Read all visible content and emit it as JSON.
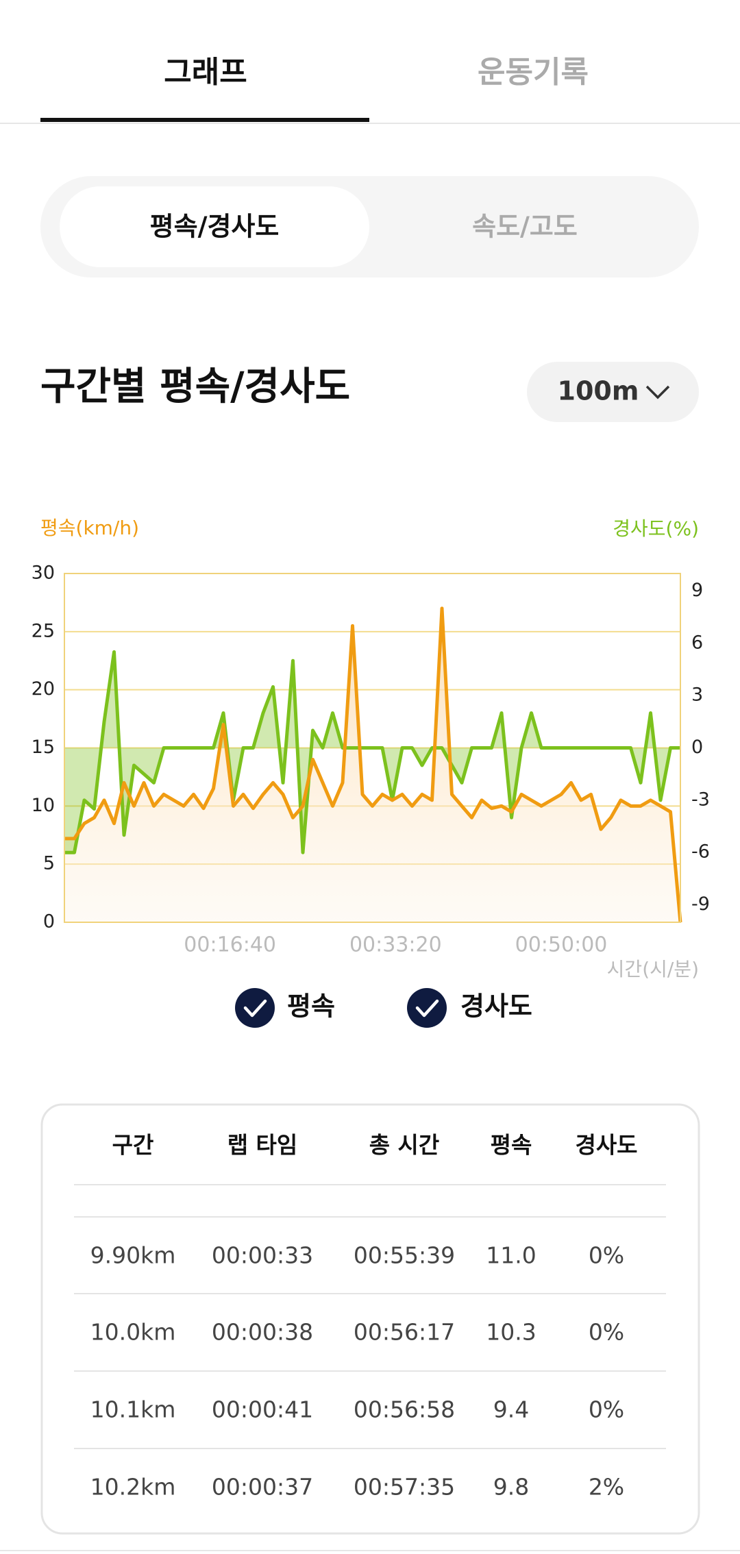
{
  "tabs": [
    "그래프",
    "운동기록"
  ],
  "segments": [
    "평속/경사도",
    "속도/고도"
  ],
  "section_title": "구간별 평속/경사도",
  "dropdown": "100m",
  "chart_data": {
    "type": "line",
    "y_label": "평속(km/h)",
    "y2_label": "경사도(%)",
    "x_label": "시간(시/분)",
    "x": [
      0,
      60,
      120,
      180,
      240,
      300,
      360,
      420,
      480,
      540,
      600,
      660,
      720,
      780,
      840,
      900,
      960,
      1020,
      1080,
      1140,
      1200,
      1260,
      1320,
      1380,
      1440,
      1500,
      1560,
      1620,
      1680,
      1740,
      1800,
      1860,
      1920,
      1980,
      2040,
      2100,
      2160,
      2220,
      2280,
      2340,
      2400,
      2460,
      2520,
      2580,
      2640,
      2700,
      2760,
      2820,
      2880,
      2940,
      3000,
      3060,
      3120,
      3180,
      3240,
      3300,
      3360,
      3420,
      3480,
      3540,
      3600,
      3660,
      3720
    ],
    "xlim": [
      0,
      3720
    ],
    "xticks": [
      {
        "value": 1000,
        "label": "00:16:40"
      },
      {
        "value": 2000,
        "label": "00:33:20"
      },
      {
        "value": 3000,
        "label": "00:50:00"
      }
    ],
    "ylim": [
      0,
      30
    ],
    "yticks": [
      0,
      5,
      10,
      15,
      20,
      25,
      30
    ],
    "y2lim": [
      -10,
      10
    ],
    "y2ticks": [
      -9,
      -6,
      -3,
      0,
      3,
      6,
      9
    ],
    "grid": true,
    "series": [
      {
        "name": "평속",
        "color": "#f09c12",
        "values": [
          7.2,
          7.2,
          8.5,
          9,
          10.5,
          8.5,
          12,
          10,
          12,
          10,
          11,
          10.5,
          10,
          11,
          9.8,
          11.5,
          17,
          10,
          11,
          9.8,
          11,
          12,
          11,
          9,
          10,
          14,
          12,
          10,
          12,
          25.5,
          11,
          10,
          11,
          10.5,
          11,
          10,
          11,
          10.5,
          27,
          11,
          10,
          9,
          10.5,
          9.8,
          10,
          9.5,
          11,
          10.5,
          10,
          10.5,
          11,
          12,
          10.5,
          11,
          8,
          9,
          10.5,
          10,
          10,
          10.5,
          10,
          9.5,
          0
        ]
      },
      {
        "name": "경사도",
        "color": "#7cc11d",
        "axis": "y2",
        "values": [
          -6,
          -6,
          -3,
          -3.5,
          1.5,
          5.5,
          -5,
          -1,
          -1.5,
          -2,
          0,
          0,
          0,
          0,
          0,
          0,
          2,
          -3,
          0,
          0,
          2,
          3.5,
          -2,
          5,
          -6,
          1,
          0,
          2,
          0,
          0,
          0,
          0,
          0,
          -3,
          0,
          0,
          -1,
          0,
          0,
          -1,
          -2,
          0,
          0,
          0,
          2,
          -4,
          0,
          2,
          0,
          0,
          0,
          0,
          0,
          0,
          0,
          0,
          0,
          0,
          -2,
          2,
          -3,
          0,
          0
        ]
      }
    ]
  },
  "table": {
    "headers": [
      "구간",
      "랩 타임",
      "총 시간",
      "평속",
      "경사도"
    ],
    "rows": [
      [
        "9.90km",
        "00:00:33",
        "00:55:39",
        "11.0",
        "0%"
      ],
      [
        "10.0km",
        "00:00:38",
        "00:56:17",
        "10.3",
        "0%"
      ],
      [
        "10.1km",
        "00:00:41",
        "00:56:58",
        "9.4",
        "0%"
      ],
      [
        "10.2km",
        "00:00:37",
        "00:57:35",
        "9.8",
        "2%"
      ]
    ]
  }
}
